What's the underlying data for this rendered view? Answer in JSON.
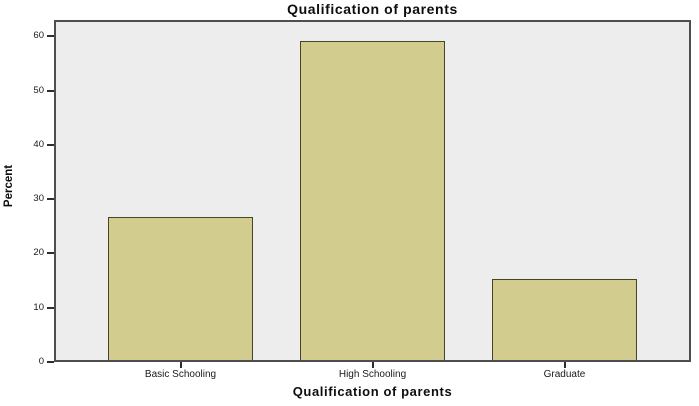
{
  "figure": {
    "kind": "spss-style-bar-chart"
  },
  "colors": {
    "bar_fill": "#d2cc8e",
    "bar_border": "#45442f",
    "plot_background": "#ededed",
    "frame_border": "#4e4e4e",
    "page_background": "#ffffff",
    "text": "#111111"
  },
  "chart_data": {
    "type": "bar",
    "title": "Qualification of parents",
    "xlabel": "Qualification of parents",
    "ylabel": "Percent",
    "categories": [
      "Basic Schooling",
      "High Schooling",
      "Graduate"
    ],
    "values": [
      26.3,
      58.8,
      15.0
    ],
    "ylim": [
      0,
      63
    ],
    "yticks": [
      0,
      10,
      20,
      30,
      40,
      50,
      60
    ],
    "grid": "off",
    "legend": "none"
  }
}
